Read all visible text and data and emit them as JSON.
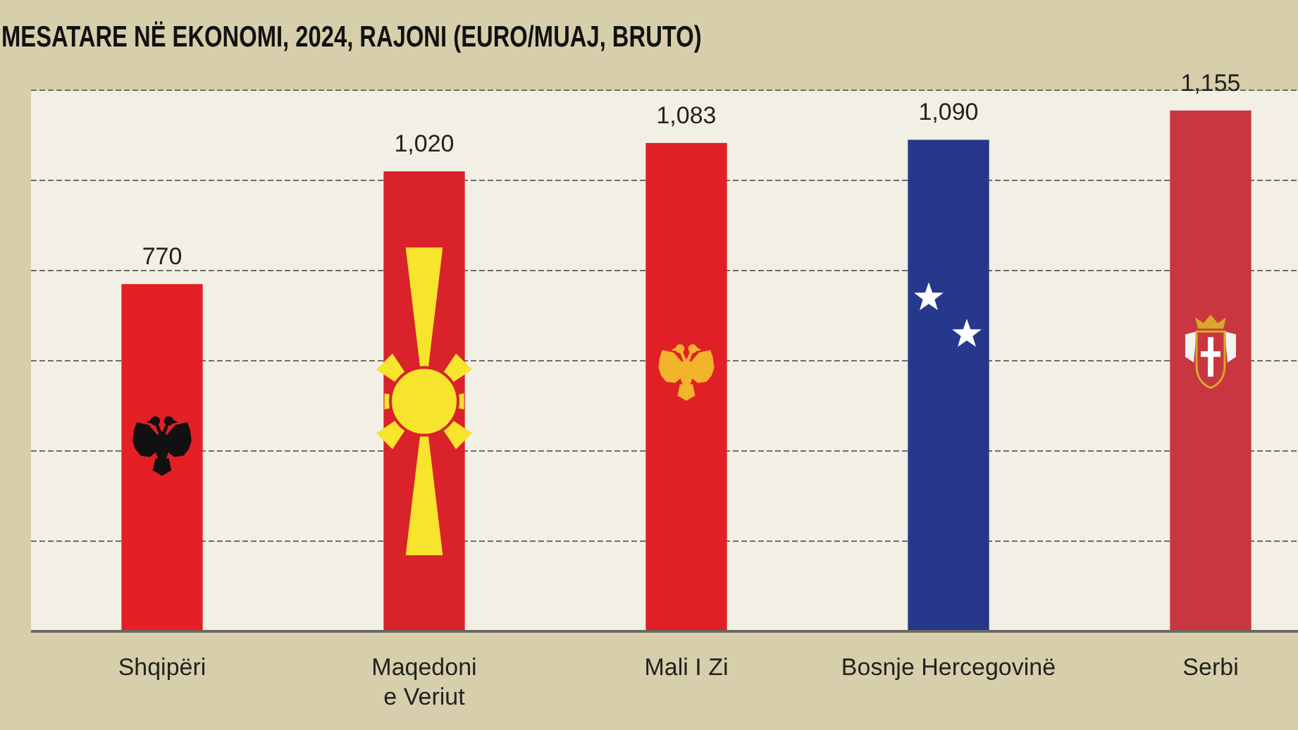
{
  "chart_data": {
    "type": "bar",
    "title": "MESATARE NË EKONOMI, 2024, RAJONI (EURO/MUAJ, BRUTO)",
    "categories": [
      "Shqipëri",
      "Maqedoni\ne Veriut",
      "Mali I Zi",
      "Bosnje Hercegovinë",
      "Serbi"
    ],
    "values": [
      770,
      1020,
      1083,
      1090,
      1155
    ],
    "value_labels": [
      "770",
      "1,020",
      "1,083",
      "1,090",
      "1,155"
    ],
    "colors": [
      "#e41f26",
      "#d9222a",
      "#e01f26",
      "#26388c",
      "#c8363f"
    ],
    "ylim": [
      0,
      1200
    ],
    "yticks": [
      0,
      200,
      400,
      600,
      800,
      1000,
      1200
    ],
    "tick_labels": "x",
    "grid": "y"
  }
}
